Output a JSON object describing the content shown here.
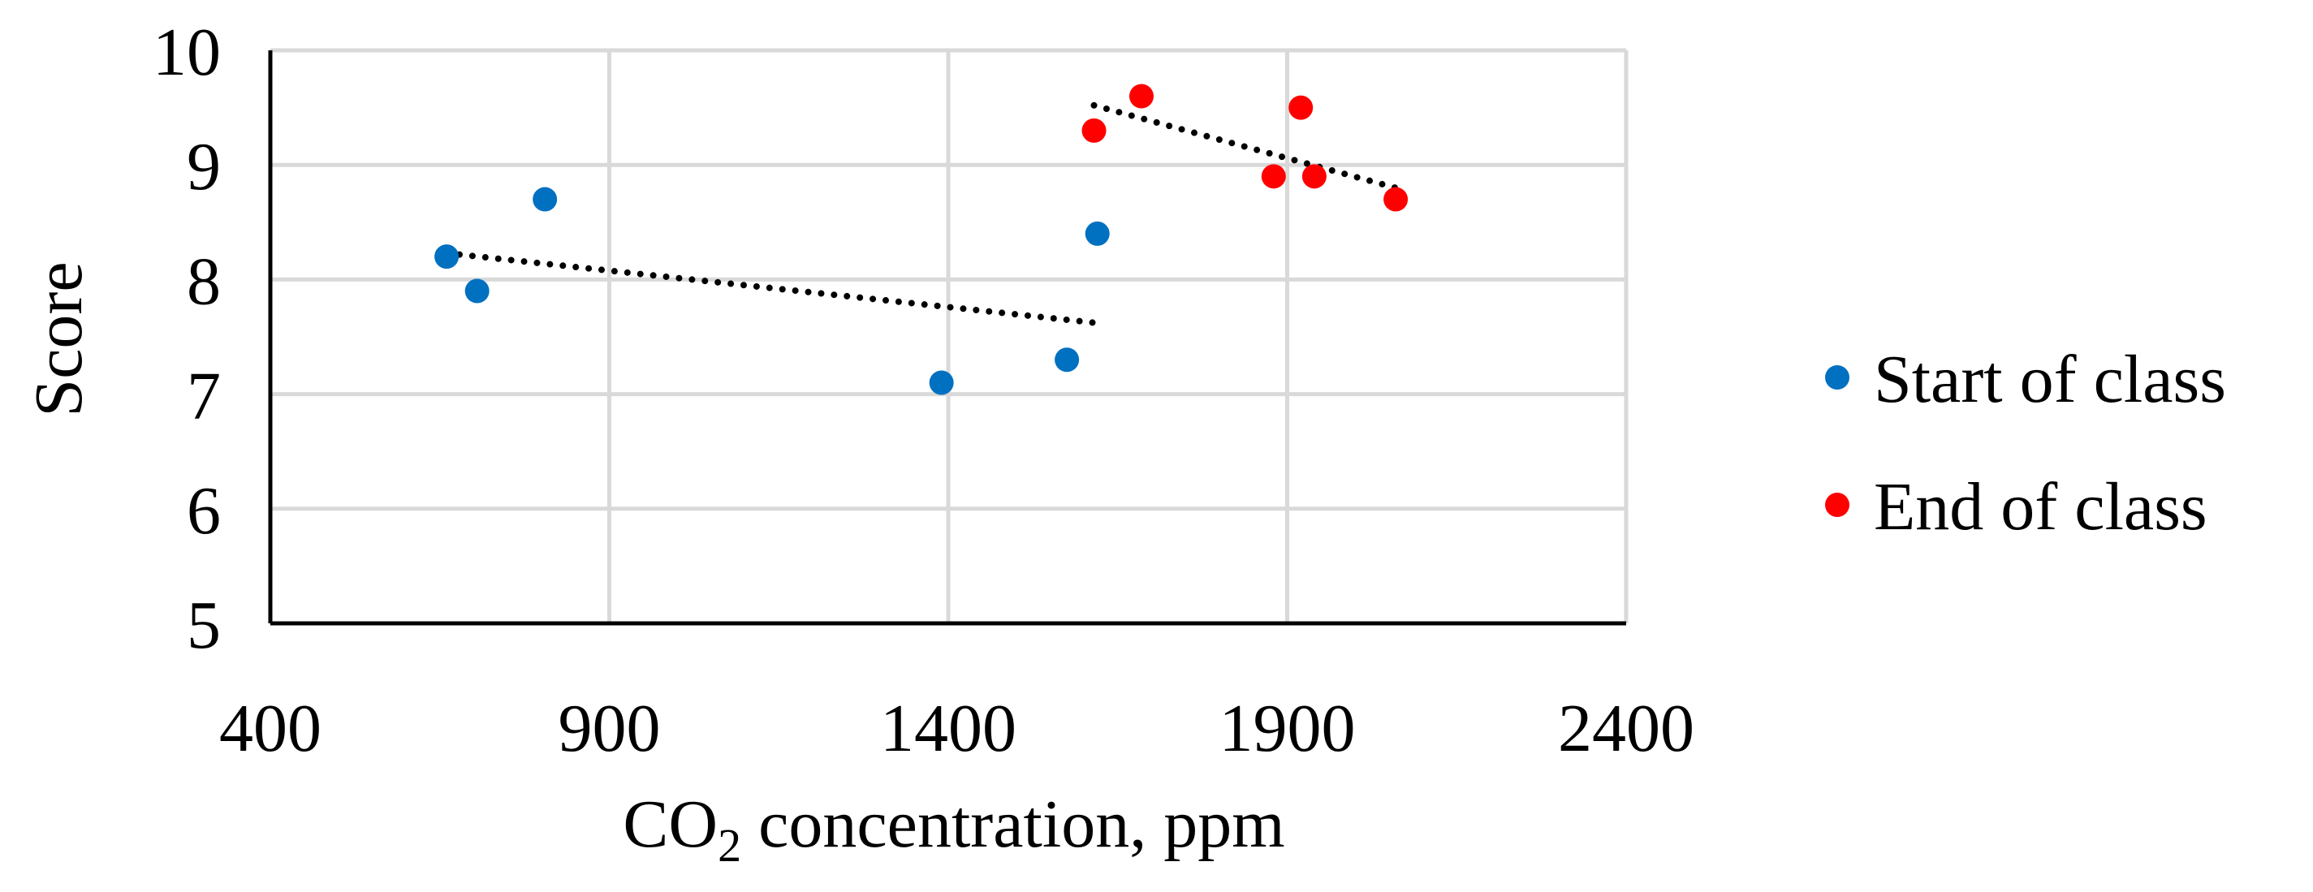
{
  "chart_data": {
    "type": "scatter",
    "title": "",
    "xlabel": "CO2 concentration, ppm",
    "xlabel_main": "CO",
    "xlabel_sub": "2",
    "xlabel_rest": " concentration, ppm",
    "ylabel": "Score",
    "xlim": [
      400,
      2400
    ],
    "ylim": [
      5,
      10
    ],
    "xticks": [
      400,
      900,
      1400,
      1900,
      2400
    ],
    "yticks": [
      5,
      6,
      7,
      8,
      9,
      10
    ],
    "grid": true,
    "legend_position": "right",
    "series": [
      {
        "name": "Start of class",
        "color": "#0070C0",
        "points": [
          {
            "x": 660,
            "y": 8.2
          },
          {
            "x": 705,
            "y": 7.9
          },
          {
            "x": 805,
            "y": 8.7
          },
          {
            "x": 1390,
            "y": 7.1
          },
          {
            "x": 1575,
            "y": 7.3
          },
          {
            "x": 1620,
            "y": 8.4
          }
        ],
        "trendline": {
          "type": "linear",
          "style": "dotted",
          "from": {
            "x": 660,
            "y": 8.23
          },
          "to": {
            "x": 1620,
            "y": 7.62
          }
        }
      },
      {
        "name": "End of class",
        "color": "#FF0000",
        "points": [
          {
            "x": 1615,
            "y": 9.3
          },
          {
            "x": 1685,
            "y": 9.6
          },
          {
            "x": 1880,
            "y": 8.9
          },
          {
            "x": 1920,
            "y": 9.5
          },
          {
            "x": 1940,
            "y": 8.9
          },
          {
            "x": 2060,
            "y": 8.7
          }
        ],
        "trendline": {
          "type": "linear",
          "style": "dotted",
          "from": {
            "x": 1615,
            "y": 9.52
          },
          "to": {
            "x": 2060,
            "y": 8.8
          }
        }
      }
    ]
  }
}
